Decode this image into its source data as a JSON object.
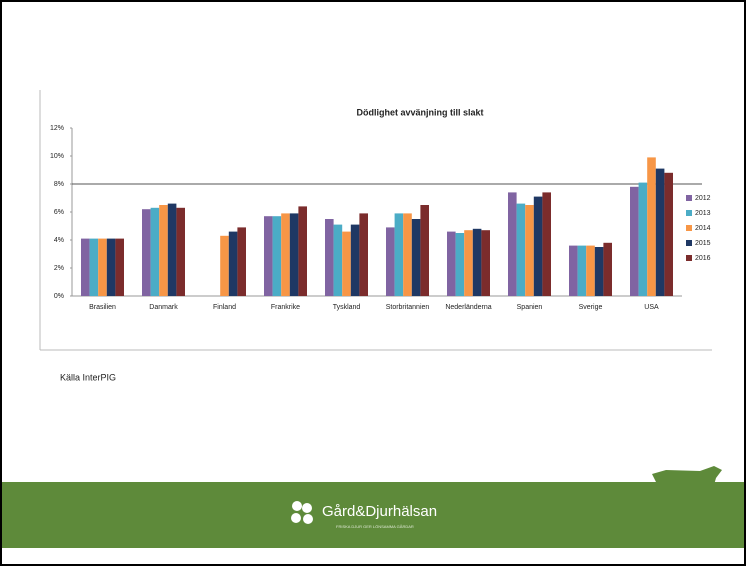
{
  "chart_data": {
    "type": "bar",
    "title": "Dödlighet avvänjning till slakt",
    "categories": [
      "Brasilien",
      "Danmark",
      "Finland",
      "Frankrike",
      "Tyskland",
      "Storbritannien",
      "Nederländerna",
      "Spanien",
      "Sverige",
      "USA"
    ],
    "series": [
      {
        "name": "2012",
        "color": "#8064a2",
        "values": [
          4.1,
          6.2,
          null,
          5.7,
          5.5,
          4.9,
          4.6,
          7.4,
          3.6,
          7.8
        ]
      },
      {
        "name": "2013",
        "color": "#4bacc6",
        "values": [
          4.1,
          6.3,
          null,
          5.7,
          5.1,
          5.9,
          4.5,
          6.6,
          3.6,
          8.1
        ]
      },
      {
        "name": "2014",
        "color": "#f79646",
        "values": [
          4.1,
          6.5,
          4.3,
          5.9,
          4.6,
          5.9,
          4.7,
          6.5,
          3.6,
          9.9
        ]
      },
      {
        "name": "2015",
        "color": "#1f3864",
        "values": [
          4.1,
          6.6,
          4.6,
          5.9,
          5.1,
          5.5,
          4.8,
          7.1,
          3.5,
          9.1
        ]
      },
      {
        "name": "2016",
        "color": "#7b2c2c",
        "values": [
          4.1,
          6.3,
          4.9,
          6.4,
          5.9,
          6.5,
          4.7,
          7.4,
          3.8,
          8.8
        ]
      }
    ],
    "ylim": [
      0,
      12
    ],
    "yticks": [
      {
        "value": 0,
        "label": "0%"
      },
      {
        "value": 2,
        "label": "2%"
      },
      {
        "value": 4,
        "label": "4%"
      },
      {
        "value": 6,
        "label": "6%"
      },
      {
        "value": 8,
        "label": "8%"
      },
      {
        "value": 10,
        "label": "10%"
      },
      {
        "value": 12,
        "label": "12%"
      }
    ],
    "reference_line": 8,
    "legend": "right"
  },
  "slide": {
    "source": "Källa InterPIG",
    "footer": {
      "brand": "Gård&Djurhälsan",
      "tagline": "FRISKA DJUR GER LÖNSAMMA GÅRDAR"
    }
  }
}
